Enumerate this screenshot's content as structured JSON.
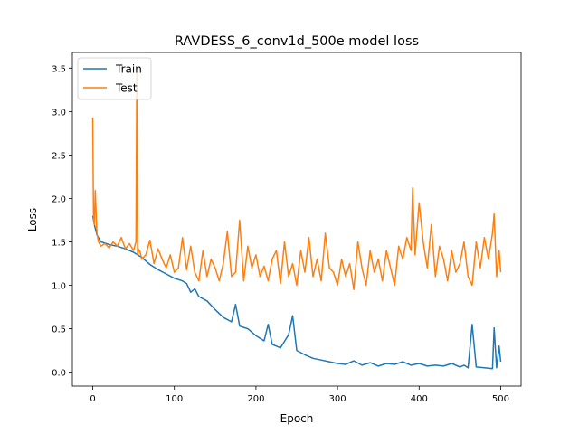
{
  "chart_data": {
    "type": "line",
    "title": "RAVDESS_6_conv1d_500e model loss",
    "xlabel": "Epoch",
    "ylabel": "Loss",
    "xlim": [
      -25,
      525
    ],
    "ylim": [
      -0.16,
      3.68
    ],
    "xticks": [
      0,
      100,
      200,
      300,
      400,
      500
    ],
    "yticks": [
      0.0,
      0.5,
      1.0,
      1.5,
      2.0,
      2.5,
      3.0,
      3.5
    ],
    "xtick_labels": [
      "0",
      "100",
      "200",
      "300",
      "400",
      "500"
    ],
    "ytick_labels": [
      "0.0",
      "0.5",
      "1.0",
      "1.5",
      "2.0",
      "2.5",
      "3.0",
      "3.5"
    ],
    "legend_position": "top-left",
    "grid": false,
    "series": [
      {
        "name": "Train",
        "color": "#1f77b4",
        "x": [
          0,
          2,
          5,
          10,
          20,
          30,
          40,
          50,
          60,
          70,
          80,
          90,
          100,
          110,
          115,
          120,
          125,
          130,
          140,
          150,
          160,
          170,
          175,
          180,
          190,
          200,
          210,
          215,
          220,
          230,
          240,
          245,
          250,
          260,
          270,
          280,
          290,
          300,
          310,
          320,
          330,
          340,
          350,
          360,
          370,
          380,
          390,
          400,
          410,
          420,
          430,
          440,
          450,
          455,
          460,
          465,
          470,
          480,
          490,
          492,
          495,
          498,
          500
        ],
        "y": [
          1.8,
          1.7,
          1.58,
          1.5,
          1.47,
          1.45,
          1.42,
          1.38,
          1.32,
          1.24,
          1.18,
          1.13,
          1.08,
          1.05,
          1.02,
          0.92,
          0.96,
          0.87,
          0.82,
          0.72,
          0.63,
          0.58,
          0.78,
          0.53,
          0.5,
          0.42,
          0.36,
          0.55,
          0.32,
          0.28,
          0.43,
          0.65,
          0.25,
          0.2,
          0.16,
          0.14,
          0.12,
          0.1,
          0.09,
          0.13,
          0.08,
          0.11,
          0.07,
          0.1,
          0.09,
          0.12,
          0.08,
          0.1,
          0.07,
          0.08,
          0.07,
          0.1,
          0.06,
          0.08,
          0.05,
          0.55,
          0.06,
          0.05,
          0.04,
          0.51,
          0.05,
          0.3,
          0.12
        ]
      },
      {
        "name": "Test",
        "color": "#ff7f0e",
        "x": [
          0,
          1,
          2,
          3,
          5,
          7,
          10,
          15,
          20,
          25,
          30,
          35,
          40,
          45,
          50,
          53,
          54,
          55,
          56,
          58,
          60,
          65,
          70,
          75,
          80,
          85,
          90,
          95,
          100,
          105,
          110,
          115,
          120,
          125,
          130,
          135,
          140,
          145,
          150,
          155,
          160,
          165,
          170,
          175,
          180,
          185,
          190,
          195,
          200,
          205,
          210,
          215,
          220,
          225,
          230,
          235,
          240,
          245,
          250,
          255,
          260,
          265,
          270,
          275,
          280,
          285,
          290,
          295,
          300,
          305,
          310,
          315,
          320,
          325,
          330,
          335,
          340,
          345,
          350,
          355,
          360,
          365,
          370,
          375,
          380,
          385,
          390,
          392,
          395,
          400,
          405,
          410,
          415,
          420,
          425,
          430,
          435,
          440,
          445,
          450,
          455,
          460,
          465,
          470,
          475,
          480,
          485,
          490,
          492,
          495,
          498,
          500
        ],
        "y": [
          2.93,
          1.75,
          1.7,
          2.09,
          1.6,
          1.5,
          1.45,
          1.48,
          1.43,
          1.5,
          1.45,
          1.55,
          1.42,
          1.48,
          1.4,
          1.5,
          3.5,
          1.35,
          1.42,
          1.38,
          1.3,
          1.35,
          1.52,
          1.25,
          1.42,
          1.3,
          1.2,
          1.35,
          1.15,
          1.2,
          1.55,
          1.18,
          1.45,
          1.15,
          1.05,
          1.4,
          1.1,
          1.3,
          1.2,
          1.05,
          1.25,
          1.62,
          1.1,
          1.15,
          1.75,
          1.05,
          1.45,
          1.2,
          1.35,
          1.1,
          1.22,
          1.05,
          1.3,
          1.4,
          1.02,
          1.5,
          1.1,
          1.25,
          1.0,
          1.4,
          1.15,
          1.55,
          1.1,
          1.3,
          1.05,
          1.6,
          1.2,
          1.15,
          1.0,
          1.3,
          1.1,
          1.25,
          0.95,
          1.5,
          1.2,
          1.0,
          1.4,
          1.15,
          1.3,
          1.05,
          1.4,
          1.2,
          1.0,
          1.45,
          1.3,
          1.55,
          1.4,
          2.12,
          1.35,
          1.95,
          1.5,
          1.2,
          1.7,
          1.1,
          1.45,
          1.3,
          1.05,
          1.4,
          1.15,
          1.25,
          1.5,
          1.1,
          1.0,
          1.5,
          1.2,
          1.55,
          1.3,
          1.6,
          1.82,
          1.1,
          1.4,
          1.15
        ]
      }
    ]
  }
}
